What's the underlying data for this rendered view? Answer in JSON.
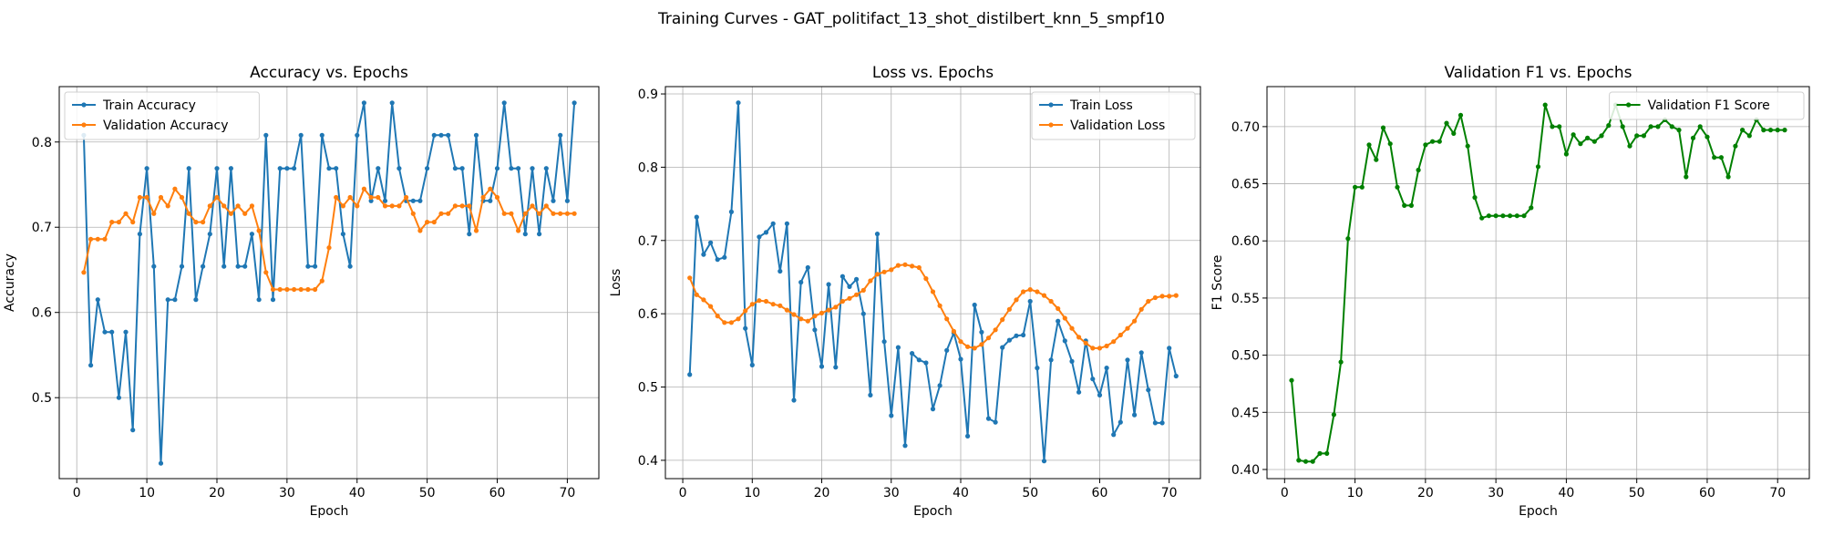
{
  "suptitle": "Training Curves - GAT_politifact_13_shot_distilbert_knn_5_smpf10",
  "colors": {
    "blue": "#1f77b4",
    "orange": "#ff7f0e",
    "green": "#008000",
    "grid": "#b0b0b0"
  },
  "chart_data": [
    {
      "type": "line",
      "title": "Accuracy vs. Epochs",
      "xlabel": "Epoch",
      "ylabel": "Accuracy",
      "xlim": [
        -2.5,
        74.5
      ],
      "ylim": [
        0.405,
        0.865
      ],
      "xticks": [
        0,
        10,
        20,
        30,
        40,
        50,
        60,
        70
      ],
      "yticks": [
        0.5,
        0.6,
        0.7,
        0.8
      ],
      "grid": true,
      "legend": "upper-left",
      "series": [
        {
          "name": "Train Accuracy",
          "color": "#1f77b4",
          "x": [
            1,
            2,
            3,
            4,
            5,
            6,
            7,
            8,
            9,
            10,
            11,
            12,
            13,
            14,
            15,
            16,
            17,
            18,
            19,
            20,
            21,
            22,
            23,
            24,
            25,
            26,
            27,
            28,
            29,
            30,
            31,
            32,
            33,
            34,
            35,
            36,
            37,
            38,
            39,
            40,
            41,
            42,
            43,
            44,
            45,
            46,
            47,
            48,
            49,
            50,
            51,
            52,
            53,
            54,
            55,
            56,
            57,
            58,
            59,
            60,
            61,
            62,
            63,
            64,
            65,
            66,
            67,
            68,
            69,
            70,
            71
          ],
          "values": [
            0.808,
            0.538,
            0.615,
            0.577,
            0.577,
            0.5,
            0.577,
            0.462,
            0.692,
            0.769,
            0.654,
            0.423,
            0.615,
            0.615,
            0.654,
            0.769,
            0.615,
            0.654,
            0.692,
            0.769,
            0.654,
            0.769,
            0.654,
            0.654,
            0.692,
            0.615,
            0.808,
            0.615,
            0.769,
            0.769,
            0.769,
            0.808,
            0.654,
            0.654,
            0.808,
            0.769,
            0.769,
            0.692,
            0.654,
            0.808,
            0.846,
            0.731,
            0.769,
            0.731,
            0.846,
            0.769,
            0.731,
            0.731,
            0.731,
            0.769,
            0.808,
            0.808,
            0.808,
            0.769,
            0.769,
            0.692,
            0.808,
            0.731,
            0.731,
            0.769,
            0.846,
            0.769,
            0.769,
            0.692,
            0.769,
            0.692,
            0.769,
            0.731,
            0.808,
            0.731,
            0.846
          ]
        },
        {
          "name": "Validation Accuracy",
          "color": "#ff7f0e",
          "x": [
            1,
            2,
            3,
            4,
            5,
            6,
            7,
            8,
            9,
            10,
            11,
            12,
            13,
            14,
            15,
            16,
            17,
            18,
            19,
            20,
            21,
            22,
            23,
            24,
            25,
            26,
            27,
            28,
            29,
            30,
            31,
            32,
            33,
            34,
            35,
            36,
            37,
            38,
            39,
            40,
            41,
            42,
            43,
            44,
            45,
            46,
            47,
            48,
            49,
            50,
            51,
            52,
            53,
            54,
            55,
            56,
            57,
            58,
            59,
            60,
            61,
            62,
            63,
            64,
            65,
            66,
            67,
            68,
            69,
            70,
            71
          ],
          "values": [
            0.647,
            0.686,
            0.686,
            0.686,
            0.706,
            0.706,
            0.716,
            0.706,
            0.735,
            0.735,
            0.716,
            0.735,
            0.725,
            0.745,
            0.735,
            0.716,
            0.706,
            0.706,
            0.725,
            0.735,
            0.725,
            0.716,
            0.725,
            0.716,
            0.725,
            0.696,
            0.647,
            0.627,
            0.627,
            0.627,
            0.627,
            0.627,
            0.627,
            0.627,
            0.637,
            0.676,
            0.735,
            0.725,
            0.735,
            0.725,
            0.745,
            0.735,
            0.735,
            0.725,
            0.725,
            0.725,
            0.735,
            0.716,
            0.696,
            0.706,
            0.706,
            0.716,
            0.716,
            0.725,
            0.725,
            0.725,
            0.696,
            0.735,
            0.745,
            0.735,
            0.716,
            0.716,
            0.696,
            0.716,
            0.725,
            0.716,
            0.725,
            0.716,
            0.716,
            0.716,
            0.716
          ]
        }
      ]
    },
    {
      "type": "line",
      "title": "Loss vs. Epochs",
      "xlabel": "Epoch",
      "ylabel": "Loss",
      "xlim": [
        -2.5,
        74.5
      ],
      "ylim": [
        0.375,
        0.91
      ],
      "xticks": [
        0,
        10,
        20,
        30,
        40,
        50,
        60,
        70
      ],
      "yticks": [
        0.4,
        0.5,
        0.6,
        0.7,
        0.8,
        0.9
      ],
      "grid": true,
      "legend": "upper-right",
      "series": [
        {
          "name": "Train Loss",
          "color": "#1f77b4",
          "x": [
            1,
            2,
            3,
            4,
            5,
            6,
            7,
            8,
            9,
            10,
            11,
            12,
            13,
            14,
            15,
            16,
            17,
            18,
            19,
            20,
            21,
            22,
            23,
            24,
            25,
            26,
            27,
            28,
            29,
            30,
            31,
            32,
            33,
            34,
            35,
            36,
            37,
            38,
            39,
            40,
            41,
            42,
            43,
            44,
            45,
            46,
            47,
            48,
            49,
            50,
            51,
            52,
            53,
            54,
            55,
            56,
            57,
            58,
            59,
            60,
            61,
            62,
            63,
            64,
            65,
            66,
            67,
            68,
            69,
            70,
            71
          ],
          "values": [
            0.517,
            0.732,
            0.681,
            0.697,
            0.674,
            0.677,
            0.739,
            0.888,
            0.58,
            0.53,
            0.705,
            0.711,
            0.723,
            0.658,
            0.723,
            0.482,
            0.643,
            0.663,
            0.578,
            0.528,
            0.64,
            0.527,
            0.651,
            0.637,
            0.647,
            0.6,
            0.489,
            0.709,
            0.562,
            0.461,
            0.554,
            0.42,
            0.546,
            0.537,
            0.533,
            0.47,
            0.502,
            0.55,
            0.574,
            0.538,
            0.433,
            0.612,
            0.575,
            0.457,
            0.452,
            0.554,
            0.564,
            0.57,
            0.571,
            0.617,
            0.526,
            0.399,
            0.537,
            0.59,
            0.563,
            0.535,
            0.493,
            0.563,
            0.511,
            0.489,
            0.526,
            0.435,
            0.452,
            0.537,
            0.462,
            0.547,
            0.496,
            0.451,
            0.451,
            0.553,
            0.515
          ]
        },
        {
          "name": "Validation Loss",
          "color": "#ff7f0e",
          "x": [
            1,
            2,
            3,
            4,
            5,
            6,
            7,
            8,
            9,
            10,
            11,
            12,
            13,
            14,
            15,
            16,
            17,
            18,
            19,
            20,
            21,
            22,
            23,
            24,
            25,
            26,
            27,
            28,
            29,
            30,
            31,
            32,
            33,
            34,
            35,
            36,
            37,
            38,
            39,
            40,
            41,
            42,
            43,
            44,
            45,
            46,
            47,
            48,
            49,
            50,
            51,
            52,
            53,
            54,
            55,
            56,
            57,
            58,
            59,
            60,
            61,
            62,
            63,
            64,
            65,
            66,
            67,
            68,
            69,
            70,
            71
          ],
          "values": [
            0.649,
            0.626,
            0.619,
            0.61,
            0.597,
            0.588,
            0.588,
            0.593,
            0.604,
            0.613,
            0.618,
            0.617,
            0.613,
            0.611,
            0.605,
            0.599,
            0.593,
            0.59,
            0.597,
            0.601,
            0.605,
            0.609,
            0.617,
            0.621,
            0.626,
            0.632,
            0.645,
            0.654,
            0.657,
            0.66,
            0.666,
            0.667,
            0.665,
            0.663,
            0.648,
            0.63,
            0.611,
            0.593,
            0.576,
            0.562,
            0.555,
            0.553,
            0.558,
            0.567,
            0.578,
            0.592,
            0.606,
            0.619,
            0.63,
            0.633,
            0.63,
            0.625,
            0.617,
            0.607,
            0.594,
            0.58,
            0.568,
            0.56,
            0.553,
            0.553,
            0.556,
            0.562,
            0.571,
            0.58,
            0.59,
            0.606,
            0.617,
            0.622,
            0.624,
            0.624,
            0.625
          ]
        }
      ]
    },
    {
      "type": "line",
      "title": "Validation F1 vs. Epochs",
      "xlabel": "Epoch",
      "ylabel": "F1 Score",
      "xlim": [
        -2.5,
        74.5
      ],
      "ylim": [
        0.392,
        0.735
      ],
      "xticks": [
        0,
        10,
        20,
        30,
        40,
        50,
        60,
        70
      ],
      "yticks": [
        0.4,
        0.45,
        0.5,
        0.55,
        0.6,
        0.65,
        0.7
      ],
      "ytick_labels": [
        "0.40",
        "0.45",
        "0.50",
        "0.55",
        "0.60",
        "0.65",
        "0.70"
      ],
      "grid": true,
      "legend": "upper-right",
      "series": [
        {
          "name": "Validation F1 Score",
          "color": "#008000",
          "x": [
            1,
            2,
            3,
            4,
            5,
            6,
            7,
            8,
            9,
            10,
            11,
            12,
            13,
            14,
            15,
            16,
            17,
            18,
            19,
            20,
            21,
            22,
            23,
            24,
            25,
            26,
            27,
            28,
            29,
            30,
            31,
            32,
            33,
            34,
            35,
            36,
            37,
            38,
            39,
            40,
            41,
            42,
            43,
            44,
            45,
            46,
            47,
            48,
            49,
            50,
            51,
            52,
            53,
            54,
            55,
            56,
            57,
            58,
            59,
            60,
            61,
            62,
            63,
            64,
            65,
            66,
            67,
            68,
            69,
            70,
            71
          ],
          "values": [
            0.478,
            0.408,
            0.407,
            0.407,
            0.414,
            0.414,
            0.448,
            0.494,
            0.602,
            0.647,
            0.647,
            0.684,
            0.671,
            0.699,
            0.685,
            0.647,
            0.631,
            0.631,
            0.662,
            0.684,
            0.687,
            0.687,
            0.703,
            0.694,
            0.71,
            0.683,
            0.638,
            0.62,
            0.622,
            0.622,
            0.622,
            0.622,
            0.622,
            0.622,
            0.629,
            0.665,
            0.719,
            0.7,
            0.7,
            0.676,
            0.693,
            0.685,
            0.69,
            0.687,
            0.692,
            0.701,
            0.719,
            0.7,
            0.683,
            0.692,
            0.692,
            0.7,
            0.7,
            0.706,
            0.7,
            0.697,
            0.656,
            0.69,
            0.7,
            0.691,
            0.673,
            0.673,
            0.656,
            0.683,
            0.697,
            0.692,
            0.706,
            0.697,
            0.697,
            0.697,
            0.697
          ]
        }
      ]
    }
  ]
}
